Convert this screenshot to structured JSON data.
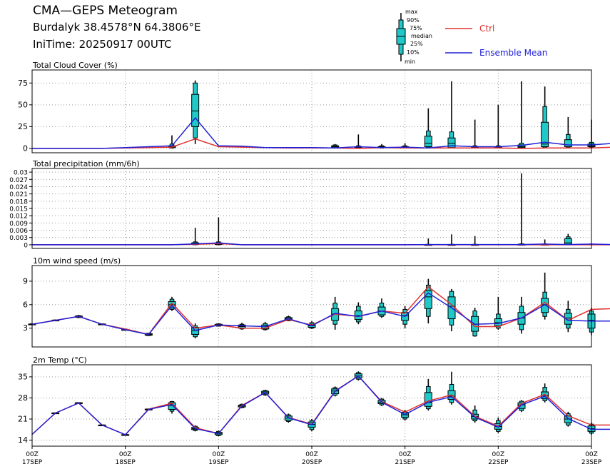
{
  "header": {
    "title": "CMA—GEPS Meteogram",
    "location": "Burdalyk 38.4578°N 64.3806°E",
    "init_time": "IniTime: 20250917 00UTC"
  },
  "legend": {
    "box_labels": [
      "max",
      "90%",
      "75%",
      "median",
      "25%",
      "10%",
      "min"
    ],
    "ctrl_label": "Ctrl",
    "mean_label": "Ensemble Mean",
    "ctrl_color": "#e03030",
    "mean_color": "#2020d8",
    "box_color": "#20c8c8"
  },
  "x_axis": {
    "hours": [
      0,
      24,
      48,
      72,
      96,
      120,
      144
    ],
    "tick_top": [
      "00Z",
      "00Z",
      "00Z",
      "00Z",
      "00Z",
      "00Z",
      "00Z"
    ],
    "tick_bottom": [
      "17SEP",
      "18SEP",
      "19SEP",
      "20SEP",
      "21SEP",
      "22SEP",
      "23SEP"
    ],
    "range": [
      0,
      144
    ],
    "step_hours": 6
  },
  "chart_data": [
    {
      "type": "box-line",
      "title": "Total Cloud Cover (%)",
      "ylim": [
        -5,
        90
      ],
      "yticks": [
        0,
        25,
        50,
        75
      ],
      "ytick_labels": [
        "0",
        "25",
        "50",
        "75"
      ],
      "grid": true,
      "ctrl": [
        0,
        0,
        0,
        0,
        0.5,
        1,
        1.5,
        11,
        2,
        1.5,
        1,
        0.5,
        0.5,
        0.5,
        0,
        1,
        0.5,
        0.5,
        0.5,
        0.5,
        0.5,
        0,
        0.5,
        0.5,
        0.5,
        1.5
      ],
      "mean": [
        0,
        0,
        0,
        0,
        1,
        2,
        3,
        35,
        3,
        2.5,
        1,
        1,
        1,
        0.5,
        2,
        1,
        1.5,
        0.5,
        3,
        2,
        2,
        3.5,
        7,
        4,
        4,
        6
      ],
      "boxes": [
        {
          "i": 6,
          "min": 0,
          "p10": 0.5,
          "p25": 1,
          "median": 2,
          "p75": 3,
          "p90": 5,
          "max": 15
        },
        {
          "i": 7,
          "min": 5,
          "p10": 12,
          "p25": 25,
          "median": 43,
          "p75": 62,
          "p90": 75,
          "max": 78
        },
        {
          "i": 13,
          "min": 0,
          "p10": 0.5,
          "p25": 1,
          "median": 2,
          "p75": 3,
          "p90": 4,
          "max": 5
        },
        {
          "i": 14,
          "min": 0,
          "p10": 0.5,
          "p25": 1,
          "median": 1.5,
          "p75": 2,
          "p90": 3,
          "max": 16
        },
        {
          "i": 15,
          "min": 0,
          "p10": 0.5,
          "p25": 1,
          "median": 1.5,
          "p75": 2,
          "p90": 3,
          "max": 5
        },
        {
          "i": 16,
          "min": 0,
          "p10": 0.5,
          "p25": 1,
          "median": 1.5,
          "p75": 2,
          "p90": 3,
          "max": 6
        },
        {
          "i": 17,
          "min": 0,
          "p10": 1,
          "p25": 2,
          "median": 6,
          "p75": 14,
          "p90": 20,
          "max": 46
        },
        {
          "i": 18,
          "min": 0,
          "p10": 0.5,
          "p25": 1,
          "median": 6,
          "p75": 12,
          "p90": 19,
          "max": 77
        },
        {
          "i": 19,
          "min": 0,
          "p10": 0.5,
          "p25": 1,
          "median": 1.5,
          "p75": 2,
          "p90": 3,
          "max": 33
        },
        {
          "i": 20,
          "min": 0,
          "p10": 0.5,
          "p25": 1,
          "median": 1.5,
          "p75": 2,
          "p90": 3,
          "max": 50
        },
        {
          "i": 21,
          "min": 0,
          "p10": 0.5,
          "p25": 1,
          "median": 2,
          "p75": 4,
          "p90": 6,
          "max": 77
        },
        {
          "i": 22,
          "min": 0,
          "p10": 1,
          "p25": 2,
          "median": 5,
          "p75": 30,
          "p90": 48,
          "max": 71
        },
        {
          "i": 23,
          "min": 0,
          "p10": 1,
          "p25": 2,
          "median": 4,
          "p75": 10,
          "p90": 16,
          "max": 36
        },
        {
          "i": 24,
          "min": 0,
          "p10": 1,
          "p25": 2,
          "median": 3,
          "p75": 5,
          "p90": 7,
          "max": 33
        }
      ]
    },
    {
      "type": "box-line",
      "title": "Total precipitation (mm/6h)",
      "ylim": [
        -0.0015,
        0.0315
      ],
      "yticks": [
        0,
        0.003,
        0.006,
        0.009,
        0.012,
        0.015,
        0.018,
        0.021,
        0.024,
        0.027,
        0.03
      ],
      "ytick_labels": [
        "0",
        "0.003",
        "0.006",
        "0.009",
        "0.012",
        "0.015",
        "0.018",
        "0.021",
        "0.024",
        "0.027",
        "0.03"
      ],
      "grid": true,
      "ctrl": [
        0,
        0,
        0,
        0,
        0,
        0,
        0,
        0.0002,
        0.0005,
        0,
        0,
        0,
        0,
        0,
        0,
        0,
        0,
        0,
        0,
        0,
        0,
        0,
        0,
        0,
        0,
        0
      ],
      "mean": [
        0,
        0,
        0,
        0,
        0,
        0,
        0,
        0.0004,
        0.0008,
        0,
        0,
        0,
        0,
        0,
        0,
        0,
        0,
        0.0001,
        0.0001,
        0.0001,
        0.0001,
        0.0001,
        0.0003,
        0.0001,
        0.0003,
        0.0001
      ],
      "boxes": [
        {
          "i": 7,
          "min": 0,
          "p10": 0,
          "p25": 0.0001,
          "median": 0.0004,
          "p75": 0.0008,
          "p90": 0.0012,
          "max": 0.007
        },
        {
          "i": 8,
          "min": 0,
          "p10": 0,
          "p25": 0.0001,
          "median": 0.0004,
          "p75": 0.0008,
          "p90": 0.0012,
          "max": 0.0113
        },
        {
          "i": 17,
          "min": 0,
          "p10": 0,
          "p25": 0,
          "median": 0,
          "p75": 0.0001,
          "p90": 0.0002,
          "max": 0.0026
        },
        {
          "i": 18,
          "min": 0,
          "p10": 0,
          "p25": 0,
          "median": 0,
          "p75": 0.0001,
          "p90": 0.0002,
          "max": 0.0043
        },
        {
          "i": 19,
          "min": 0,
          "p10": 0,
          "p25": 0,
          "median": 0,
          "p75": 0.0001,
          "p90": 0.0002,
          "max": 0.0036
        },
        {
          "i": 21,
          "min": 0,
          "p10": 0,
          "p25": 0,
          "median": 0.0001,
          "p75": 0.0002,
          "p90": 0.0004,
          "max": 0.0295
        },
        {
          "i": 22,
          "min": 0,
          "p10": 0,
          "p25": 0,
          "median": 0.0001,
          "p75": 0.0002,
          "p90": 0.0004,
          "max": 0.0022
        },
        {
          "i": 23,
          "min": 0,
          "p10": 0,
          "p25": 0.0002,
          "median": 0.0008,
          "p75": 0.0025,
          "p90": 0.0033,
          "max": 0.0045
        }
      ]
    },
    {
      "type": "box-line",
      "title": "10m wind speed (m/s)",
      "ylim": [
        0.6,
        11.0
      ],
      "yticks": [
        3,
        6,
        9
      ],
      "ytick_labels": [
        "3",
        "6",
        "9"
      ],
      "grid": true,
      "ctrl": [
        3.5,
        4.0,
        4.5,
        3.5,
        2.9,
        2.2,
        6.2,
        3.0,
        3.4,
        3.0,
        3.0,
        4.1,
        3.4,
        4.8,
        4.5,
        5.2,
        4.9,
        8.3,
        6.0,
        3.2,
        3.2,
        4.3,
        6.3,
        4.0,
        5.4,
        5.5
      ],
      "mean": [
        3.5,
        4.0,
        4.5,
        3.5,
        2.8,
        2.2,
        5.9,
        2.7,
        3.4,
        3.3,
        3.2,
        4.2,
        3.3,
        4.9,
        4.5,
        5.2,
        4.5,
        7.5,
        5.6,
        3.5,
        3.6,
        4.3,
        6.0,
        4.0,
        3.9,
        3.9
      ],
      "boxes": [
        {
          "i": 0,
          "min": 3.4,
          "p10": 3.45,
          "p25": 3.47,
          "median": 3.5,
          "p75": 3.53,
          "p90": 3.55,
          "max": 3.6
        },
        {
          "i": 1,
          "min": 3.9,
          "p10": 3.95,
          "p25": 3.97,
          "median": 4.0,
          "p75": 4.03,
          "p90": 4.05,
          "max": 4.1
        },
        {
          "i": 2,
          "min": 4.3,
          "p10": 4.35,
          "p25": 4.4,
          "median": 4.5,
          "p75": 4.55,
          "p90": 4.6,
          "max": 4.7
        },
        {
          "i": 3,
          "min": 3.4,
          "p10": 3.45,
          "p25": 3.47,
          "median": 3.5,
          "p75": 3.53,
          "p90": 3.55,
          "max": 3.6
        },
        {
          "i": 4,
          "min": 2.7,
          "p10": 2.75,
          "p25": 2.78,
          "median": 2.8,
          "p75": 2.83,
          "p90": 2.86,
          "max": 2.9
        },
        {
          "i": 5,
          "min": 2.0,
          "p10": 2.05,
          "p25": 2.1,
          "median": 2.2,
          "p75": 2.3,
          "p90": 2.35,
          "max": 2.4
        },
        {
          "i": 6,
          "min": 5.2,
          "p10": 5.4,
          "p25": 5.6,
          "median": 6.0,
          "p75": 6.4,
          "p90": 6.7,
          "max": 7.0
        },
        {
          "i": 7,
          "min": 1.7,
          "p10": 1.9,
          "p25": 2.2,
          "median": 2.7,
          "p75": 3.1,
          "p90": 3.3,
          "max": 3.6
        },
        {
          "i": 8,
          "min": 3.2,
          "p10": 3.25,
          "p25": 3.3,
          "median": 3.4,
          "p75": 3.5,
          "p90": 3.55,
          "max": 3.6
        },
        {
          "i": 9,
          "min": 2.8,
          "p10": 2.9,
          "p25": 3.0,
          "median": 3.2,
          "p75": 3.4,
          "p90": 3.5,
          "max": 3.7
        },
        {
          "i": 10,
          "min": 2.7,
          "p10": 2.8,
          "p25": 2.9,
          "median": 3.2,
          "p75": 3.4,
          "p90": 3.6,
          "max": 3.8
        },
        {
          "i": 11,
          "min": 3.9,
          "p10": 3.95,
          "p25": 4.0,
          "median": 4.2,
          "p75": 4.35,
          "p90": 4.45,
          "max": 4.6
        },
        {
          "i": 12,
          "min": 2.9,
          "p10": 3.0,
          "p25": 3.1,
          "median": 3.3,
          "p75": 3.5,
          "p90": 3.7,
          "max": 3.9
        },
        {
          "i": 13,
          "min": 2.8,
          "p10": 3.5,
          "p25": 4.0,
          "median": 4.8,
          "p75": 5.5,
          "p90": 6.2,
          "max": 7.0
        },
        {
          "i": 14,
          "min": 3.5,
          "p10": 3.8,
          "p25": 4.1,
          "median": 4.6,
          "p75": 5.2,
          "p90": 5.8,
          "max": 6.3
        },
        {
          "i": 15,
          "min": 4.3,
          "p10": 4.5,
          "p25": 4.7,
          "median": 5.2,
          "p75": 5.7,
          "p90": 6.2,
          "max": 6.8
        },
        {
          "i": 16,
          "min": 3.0,
          "p10": 3.5,
          "p25": 4.0,
          "median": 4.6,
          "p75": 5.0,
          "p90": 5.4,
          "max": 5.8
        },
        {
          "i": 17,
          "min": 3.6,
          "p10": 4.5,
          "p25": 5.5,
          "median": 7.0,
          "p75": 7.8,
          "p90": 8.5,
          "max": 9.3
        },
        {
          "i": 18,
          "min": 2.6,
          "p10": 3.4,
          "p25": 4.2,
          "median": 5.8,
          "p75": 7.0,
          "p90": 7.7,
          "max": 8.0
        },
        {
          "i": 19,
          "min": 1.9,
          "p10": 2.0,
          "p25": 2.6,
          "median": 3.5,
          "p75": 4.5,
          "p90": 5.2,
          "max": 5.6
        },
        {
          "i": 20,
          "min": 2.8,
          "p10": 3.0,
          "p25": 3.3,
          "median": 3.7,
          "p75": 4.2,
          "p90": 4.8,
          "max": 7.0
        },
        {
          "i": 21,
          "min": 2.3,
          "p10": 2.8,
          "p25": 3.5,
          "median": 4.3,
          "p75": 5.0,
          "p90": 5.8,
          "max": 7.0
        },
        {
          "i": 22,
          "min": 4.1,
          "p10": 4.5,
          "p25": 5.0,
          "median": 6.0,
          "p75": 6.8,
          "p90": 7.6,
          "max": 10.1
        },
        {
          "i": 23,
          "min": 2.5,
          "p10": 3.0,
          "p25": 3.5,
          "median": 4.3,
          "p75": 4.9,
          "p90": 5.4,
          "max": 6.5
        },
        {
          "i": 24,
          "min": 2.1,
          "p10": 2.5,
          "p25": 3.0,
          "median": 4.0,
          "p75": 4.8,
          "p90": 5.2,
          "max": 5.6
        }
      ]
    },
    {
      "type": "box-line",
      "title": "2m Temp (°C)",
      "ylim": [
        12.0,
        39.0
      ],
      "yticks": [
        14,
        21,
        28,
        35
      ],
      "ytick_labels": [
        "14",
        "21",
        "28",
        "35"
      ],
      "grid": true,
      "ctrl": [
        15.9,
        23.0,
        26.3,
        19.0,
        15.8,
        24.3,
        26.2,
        18.1,
        16.2,
        25.5,
        29.8,
        21.5,
        19.3,
        30.3,
        35.3,
        26.8,
        23.3,
        27.0,
        29.0,
        21.9,
        18.6,
        26.2,
        29.2,
        22.1,
        19.0,
        19.0
      ],
      "mean": [
        15.9,
        23.0,
        26.3,
        19.0,
        15.8,
        24.2,
        25.8,
        17.8,
        16.2,
        25.3,
        29.8,
        21.4,
        19.1,
        30.2,
        35.3,
        26.6,
        22.5,
        26.6,
        28.4,
        21.6,
        18.3,
        25.7,
        28.6,
        21.2,
        17.6,
        17.6
      ],
      "boxes": [
        {
          "i": 1,
          "min": 22.9,
          "p10": 22.95,
          "p25": 22.98,
          "median": 23.0,
          "p75": 23.03,
          "p90": 23.06,
          "max": 23.1
        },
        {
          "i": 2,
          "min": 26.1,
          "p10": 26.15,
          "p25": 26.2,
          "median": 26.3,
          "p75": 26.4,
          "p90": 26.45,
          "max": 26.5
        },
        {
          "i": 3,
          "min": 18.9,
          "p10": 18.95,
          "p25": 18.98,
          "median": 19.0,
          "p75": 19.03,
          "p90": 19.06,
          "max": 19.1
        },
        {
          "i": 4,
          "min": 15.7,
          "p10": 15.75,
          "p25": 15.78,
          "median": 15.8,
          "p75": 15.83,
          "p90": 15.86,
          "max": 15.9
        },
        {
          "i": 5,
          "min": 24.0,
          "p10": 24.1,
          "p25": 24.15,
          "median": 24.2,
          "p75": 24.3,
          "p90": 24.35,
          "max": 24.4
        },
        {
          "i": 6,
          "min": 22.8,
          "p10": 23.6,
          "p25": 24.2,
          "median": 25.5,
          "p75": 26.4,
          "p90": 26.8,
          "max": 27.0
        },
        {
          "i": 7,
          "min": 16.9,
          "p10": 17.2,
          "p25": 17.5,
          "median": 17.8,
          "p75": 18.2,
          "p90": 18.6,
          "max": 18.9
        },
        {
          "i": 8,
          "min": 15.3,
          "p10": 15.5,
          "p25": 15.8,
          "median": 16.2,
          "p75": 16.6,
          "p90": 16.9,
          "max": 17.2
        },
        {
          "i": 9,
          "min": 24.6,
          "p10": 24.8,
          "p25": 25.0,
          "median": 25.3,
          "p75": 25.6,
          "p90": 25.9,
          "max": 26.1
        },
        {
          "i": 10,
          "min": 28.7,
          "p10": 29.0,
          "p25": 29.3,
          "median": 29.8,
          "p75": 30.2,
          "p90": 30.5,
          "max": 30.7
        },
        {
          "i": 11,
          "min": 19.8,
          "p10": 20.2,
          "p25": 20.6,
          "median": 21.3,
          "p75": 22.0,
          "p90": 22.4,
          "max": 22.8
        },
        {
          "i": 12,
          "min": 16.9,
          "p10": 17.5,
          "p25": 18.3,
          "median": 19.2,
          "p75": 20.0,
          "p90": 20.5,
          "max": 21.0
        },
        {
          "i": 13,
          "min": 28.5,
          "p10": 28.9,
          "p25": 29.4,
          "median": 30.3,
          "p75": 31.0,
          "p90": 31.4,
          "max": 31.8
        },
        {
          "i": 14,
          "min": 33.8,
          "p10": 34.2,
          "p25": 34.7,
          "median": 35.3,
          "p75": 36.0,
          "p90": 36.4,
          "max": 36.8
        },
        {
          "i": 15,
          "min": 25.3,
          "p10": 25.7,
          "p25": 26.1,
          "median": 26.6,
          "p75": 27.2,
          "p90": 27.6,
          "max": 28.0
        },
        {
          "i": 16,
          "min": 20.5,
          "p10": 21.0,
          "p25": 21.6,
          "median": 22.4,
          "p75": 23.2,
          "p90": 23.6,
          "max": 24.0
        },
        {
          "i": 17,
          "min": 23.8,
          "p10": 24.4,
          "p25": 25.2,
          "median": 26.5,
          "p75": 29.8,
          "p90": 31.8,
          "max": 34.3
        },
        {
          "i": 18,
          "min": 25.8,
          "p10": 26.5,
          "p25": 27.5,
          "median": 28.6,
          "p75": 30.4,
          "p90": 32.5,
          "max": 36.7
        },
        {
          "i": 19,
          "min": 19.8,
          "p10": 20.4,
          "p25": 21.0,
          "median": 21.8,
          "p75": 22.6,
          "p90": 24.0,
          "max": 25.5
        },
        {
          "i": 20,
          "min": 16.4,
          "p10": 16.9,
          "p25": 17.6,
          "median": 18.5,
          "p75": 19.5,
          "p90": 20.5,
          "max": 21.5
        },
        {
          "i": 21,
          "min": 23.3,
          "p10": 23.8,
          "p25": 24.5,
          "median": 25.7,
          "p75": 26.4,
          "p90": 26.9,
          "max": 27.3
        },
        {
          "i": 22,
          "min": 26.5,
          "p10": 27.1,
          "p25": 27.8,
          "median": 28.8,
          "p75": 30.0,
          "p90": 31.5,
          "max": 32.8
        },
        {
          "i": 23,
          "min": 18.5,
          "p10": 19.0,
          "p25": 19.8,
          "median": 21.0,
          "p75": 22.0,
          "p90": 22.8,
          "max": 23.4
        },
        {
          "i": 24,
          "min": 15.8,
          "p10": 16.3,
          "p25": 16.9,
          "median": 17.8,
          "p75": 18.7,
          "p90": 19.3,
          "max": 19.8
        }
      ]
    }
  ]
}
